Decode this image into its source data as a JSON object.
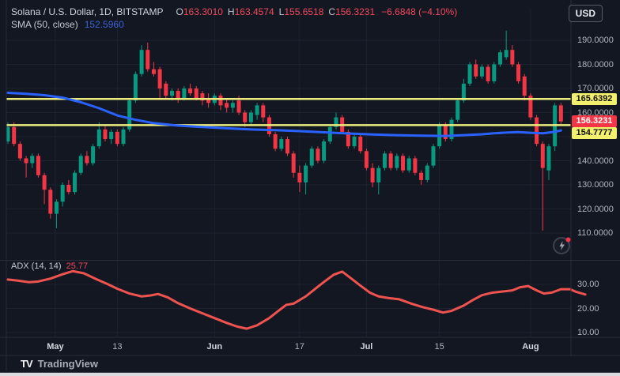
{
  "legend": {
    "title": "Solana / U.S. Dollar, 1D, BITSTAMP",
    "o_label": "O",
    "o_value": "163.3010",
    "h_label": "H",
    "h_value": "163.4574",
    "l_label": "L",
    "l_value": "155.6518",
    "c_label": "C",
    "c_value": "156.3231",
    "change": "−6.6848 (−4.10%)",
    "sma_label": "SMA (50, close)",
    "sma_value": "152.5960"
  },
  "indicator_legend": {
    "label": "ADX (14, 14)",
    "value": "25.77"
  },
  "header": {
    "currency_button": "USD"
  },
  "footer": {
    "brand": "TradingView",
    "logo": "TV"
  },
  "colors": {
    "background": "#131722",
    "grid": "#1d2230",
    "axis_text": "#b2b5be",
    "axis_line": "#2a2e39",
    "up": "#089981",
    "down": "#f23645",
    "sma": "#2962ff",
    "adx_line": "#ef5350",
    "level_line": "#ecec7c",
    "level_label_bg": "#f3f06e",
    "last_price_bg": "#f23645"
  },
  "chart_data": {
    "type": "candlestick",
    "symbol": "Solana / U.S. Dollar",
    "interval": "1D",
    "exchange": "BITSTAMP",
    "panes": {
      "price": {
        "y_ticks": [
          190,
          180,
          170,
          160,
          150,
          140,
          130,
          120,
          110
        ],
        "tick_decimals": 4,
        "horizontal_lines": [
          {
            "value": 165.6392,
            "label_y": 125.3
          },
          {
            "value": 154.7777,
            "label_y": 168
          }
        ],
        "last_price": 156.3231,
        "candles": [
          [
            148,
            156,
            147,
            154
          ],
          [
            154,
            156,
            146,
            147
          ],
          [
            147,
            148,
            140,
            141
          ],
          [
            141,
            142,
            133,
            139
          ],
          [
            139,
            143,
            137,
            142
          ],
          [
            142,
            143,
            133,
            134
          ],
          [
            134,
            135,
            122,
            128
          ],
          [
            128,
            129,
            116,
            118
          ],
          [
            118,
            124,
            112,
            123
          ],
          [
            123,
            131,
            121,
            130
          ],
          [
            130,
            132,
            126,
            127
          ],
          [
            127,
            136,
            126,
            135
          ],
          [
            135,
            143,
            134,
            142
          ],
          [
            142,
            144,
            138,
            139
          ],
          [
            139,
            147,
            138,
            146
          ],
          [
            146,
            156,
            145,
            153
          ],
          [
            153,
            155,
            148,
            149
          ],
          [
            149,
            153,
            147,
            152
          ],
          [
            152,
            153,
            146,
            147
          ],
          [
            147,
            154,
            146,
            153
          ],
          [
            153,
            166,
            152,
            165
          ],
          [
            165,
            177,
            164,
            176
          ],
          [
            176,
            188,
            175,
            186
          ],
          [
            186,
            189,
            177,
            178
          ],
          [
            178,
            181,
            175,
            176
          ],
          [
            178,
            179,
            166,
            170
          ],
          [
            172,
            173,
            166,
            167
          ],
          [
            167,
            170,
            165,
            169
          ],
          [
            169,
            170,
            164,
            166
          ],
          [
            166,
            171,
            165,
            170
          ],
          [
            170,
            172,
            167,
            168
          ],
          [
            170,
            171,
            165,
            166
          ],
          [
            168,
            169,
            163,
            165
          ],
          [
            166,
            168,
            162,
            164
          ],
          [
            164,
            168,
            163,
            167
          ],
          [
            167,
            168,
            161,
            163
          ],
          [
            164,
            166,
            160,
            162
          ],
          [
            162,
            165,
            160,
            164
          ],
          [
            165,
            167,
            159,
            160
          ],
          [
            160,
            161,
            154,
            156
          ],
          [
            156,
            161,
            155,
            160
          ],
          [
            159,
            164,
            157,
            163
          ],
          [
            163,
            164,
            156,
            158
          ],
          [
            158,
            159,
            150,
            151
          ],
          [
            151,
            152,
            144,
            145
          ],
          [
            145,
            150,
            144,
            149
          ],
          [
            149,
            150,
            142,
            143
          ],
          [
            143,
            144,
            133,
            135
          ],
          [
            135,
            138,
            127,
            131
          ],
          [
            131,
            139,
            126,
            138
          ],
          [
            138,
            146,
            137,
            145
          ],
          [
            145,
            146,
            139,
            140
          ],
          [
            140,
            149,
            139,
            148
          ],
          [
            148,
            155,
            147,
            154
          ],
          [
            154,
            160,
            153,
            158
          ],
          [
            158,
            159,
            151,
            152
          ],
          [
            152,
            153,
            145,
            146
          ],
          [
            146,
            151,
            145,
            150
          ],
          [
            150,
            151,
            143,
            144
          ],
          [
            144,
            145,
            136,
            137
          ],
          [
            137,
            139,
            129,
            131
          ],
          [
            131,
            138,
            126,
            137
          ],
          [
            137,
            144,
            136,
            143
          ],
          [
            143,
            144,
            136,
            137
          ],
          [
            137,
            143,
            136,
            142
          ],
          [
            142,
            143,
            135,
            136
          ],
          [
            136,
            142,
            135,
            141
          ],
          [
            141,
            142,
            134,
            135
          ],
          [
            135,
            136,
            130,
            132
          ],
          [
            132,
            139,
            131,
            138
          ],
          [
            138,
            147,
            137,
            146
          ],
          [
            146,
            156,
            145,
            155
          ],
          [
            155,
            156,
            148,
            149
          ],
          [
            149,
            158,
            148,
            157
          ],
          [
            157,
            166,
            156,
            165
          ],
          [
            165,
            174,
            164,
            172
          ],
          [
            172,
            181,
            171,
            180
          ],
          [
            180,
            182,
            174,
            175
          ],
          [
            175,
            180,
            174,
            179
          ],
          [
            179,
            180,
            172,
            173
          ],
          [
            173,
            181,
            172,
            180
          ],
          [
            180,
            186,
            179,
            185
          ],
          [
            183,
            194,
            182,
            186
          ],
          [
            186,
            188,
            179,
            180
          ],
          [
            180,
            181,
            172,
            173
          ],
          [
            175,
            176,
            165,
            167
          ],
          [
            167,
            168,
            157,
            158
          ],
          [
            158,
            159,
            146,
            147
          ],
          [
            147,
            148,
            111,
            137
          ],
          [
            136,
            147,
            132,
            146
          ],
          [
            146,
            164,
            144,
            163
          ],
          [
            163,
            164,
            155,
            156.32
          ]
        ],
        "sma50_points": [
          [
            0,
            168.2
          ],
          [
            3,
            167.8
          ],
          [
            6,
            167.2
          ],
          [
            9,
            166.2
          ],
          [
            12,
            164.3
          ],
          [
            15,
            161.8
          ],
          [
            18,
            158.8
          ],
          [
            21,
            157
          ],
          [
            24,
            155.6
          ],
          [
            28,
            154.6
          ],
          [
            32,
            154
          ],
          [
            36,
            153.5
          ],
          [
            40,
            153
          ],
          [
            44,
            152.7
          ],
          [
            48,
            152.3
          ],
          [
            52,
            151.8
          ],
          [
            56,
            151.3
          ],
          [
            60,
            150.9
          ],
          [
            64,
            150.6
          ],
          [
            68,
            150.4
          ],
          [
            72,
            150.3
          ],
          [
            75,
            150.6
          ],
          [
            78,
            151
          ],
          [
            80,
            151.4
          ],
          [
            82,
            151.7
          ],
          [
            84,
            151.9
          ],
          [
            86,
            151.6
          ],
          [
            88,
            151.4
          ],
          [
            90,
            152
          ],
          [
            91,
            152.6
          ]
        ]
      },
      "adx": {
        "name": "ADX (14, 14)",
        "y_ticks": [
          30,
          20,
          10
        ],
        "tick_decimals": 2,
        "points": [
          [
            0,
            32
          ],
          [
            1.5,
            31.6
          ],
          [
            3.5,
            30.9
          ],
          [
            5,
            31.2
          ],
          [
            7,
            32.4
          ],
          [
            9,
            34.2
          ],
          [
            10.7,
            35.5
          ],
          [
            12.5,
            34.6
          ],
          [
            14.5,
            32.2
          ],
          [
            16.5,
            30
          ],
          [
            18,
            28.2
          ],
          [
            20,
            26.2
          ],
          [
            22,
            25
          ],
          [
            23.5,
            25.4
          ],
          [
            24.7,
            26
          ],
          [
            26.3,
            24.6
          ],
          [
            28,
            22.2
          ],
          [
            30,
            20
          ],
          [
            32,
            18
          ],
          [
            34,
            16
          ],
          [
            36,
            14
          ],
          [
            37.7,
            12.5
          ],
          [
            39.3,
            11.6
          ],
          [
            41,
            13
          ],
          [
            43,
            16
          ],
          [
            44.5,
            19
          ],
          [
            45.8,
            21.5
          ],
          [
            47,
            22
          ],
          [
            49,
            25
          ],
          [
            50.5,
            28
          ],
          [
            52,
            31
          ],
          [
            53.6,
            34
          ],
          [
            55,
            35.3
          ],
          [
            56.2,
            33
          ],
          [
            58,
            29.5
          ],
          [
            59.6,
            26.5
          ],
          [
            61,
            25
          ],
          [
            62.7,
            24.3
          ],
          [
            64.4,
            23.8
          ],
          [
            66.4,
            22
          ],
          [
            68.3,
            20.5
          ],
          [
            70,
            19.5
          ],
          [
            71.6,
            18.3
          ],
          [
            73,
            19
          ],
          [
            75,
            21.2
          ],
          [
            76.5,
            23.5
          ],
          [
            78,
            25.5
          ],
          [
            79.6,
            26.5
          ],
          [
            81.3,
            27
          ],
          [
            83,
            27.5
          ],
          [
            84.3,
            28.8
          ],
          [
            85.6,
            29.3
          ],
          [
            87,
            27.5
          ],
          [
            88.2,
            26.2
          ],
          [
            89.5,
            26.6
          ],
          [
            91,
            28
          ],
          [
            92.5,
            28
          ],
          [
            93.5,
            26.9
          ],
          [
            95,
            25.8
          ]
        ]
      }
    },
    "x_axis": {
      "ticks": [
        {
          "label": "May",
          "i": 7.8,
          "month": true
        },
        {
          "label": "13",
          "i": 18,
          "month": false
        },
        {
          "label": "Jun",
          "i": 34,
          "month": true
        },
        {
          "label": "17",
          "i": 48,
          "month": false
        },
        {
          "label": "Jul",
          "i": 59,
          "month": true
        },
        {
          "label": "15",
          "i": 71,
          "month": false
        },
        {
          "label": "Aug",
          "i": 86,
          "month": true
        }
      ]
    }
  }
}
